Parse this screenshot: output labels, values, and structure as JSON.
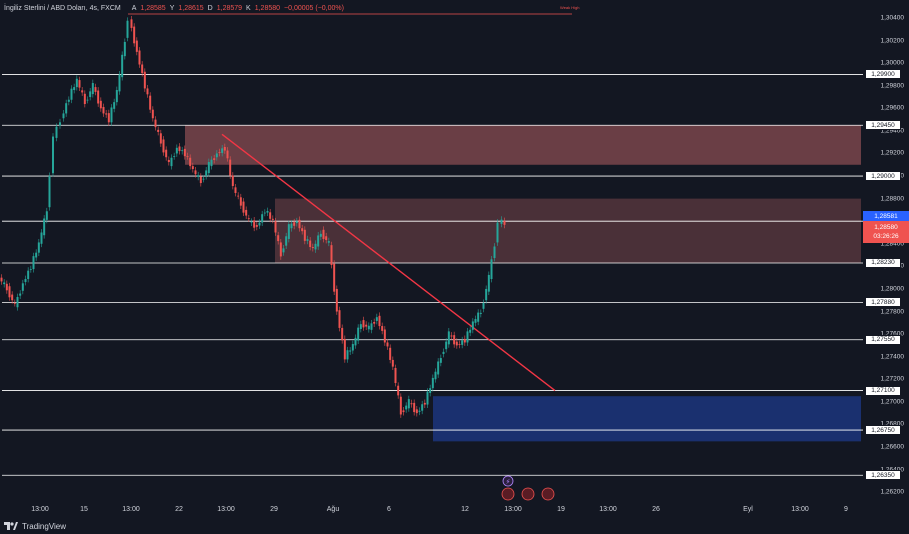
{
  "header": {
    "symbol": "İngiliz Sterlini / ABD Doları, 4s, FXCM",
    "open_label": "A",
    "open": "1,28585",
    "high_label": "Y",
    "high": "1,28615",
    "low_label": "D",
    "low": "1,28579",
    "close_label": "K",
    "close": "1,28580",
    "change": "−0,00005 (−0,00%)"
  },
  "price_axis": {
    "labels": [
      "1,30400",
      "1,30200",
      "1,30000",
      "1,29800",
      "1,29600",
      "1,29400",
      "1,29200",
      "1,29000",
      "1,28800",
      "1,28600",
      "1,28400",
      "1,28200",
      "1,28000",
      "1,27800",
      "1,27600",
      "1,27400",
      "1,27200",
      "1,27000",
      "1,26800",
      "1,26600",
      "1,26400",
      "1,26200"
    ],
    "levels": [
      "1,29900",
      "1,29450",
      "1,29000",
      "1,28600",
      "1,28230",
      "1,27880",
      "1,27550",
      "1,27100",
      "1,26750",
      "1,26350"
    ],
    "blue_label": "1,28581",
    "current_price": "1,28580",
    "countdown": "03:26:26"
  },
  "time_axis": {
    "labels": [
      "13:00",
      "15",
      "13:00",
      "22",
      "13:00",
      "29",
      "Ağu",
      "6",
      "12",
      "13:00",
      "19",
      "13:00",
      "26",
      "Eyl",
      "13:00",
      "9"
    ]
  },
  "footer": {
    "brand": "TradingView"
  },
  "annotations": {
    "top_tag": "Weak High",
    "event_icon": "⚡"
  },
  "colors": {
    "background": "#131722",
    "bull": "#26a69a",
    "bear": "#ef5350",
    "supply_zone": "#b25f62",
    "demand_zone": "#1e3a8a",
    "trendline": "#f23645",
    "level_line": "#ffffff"
  }
}
